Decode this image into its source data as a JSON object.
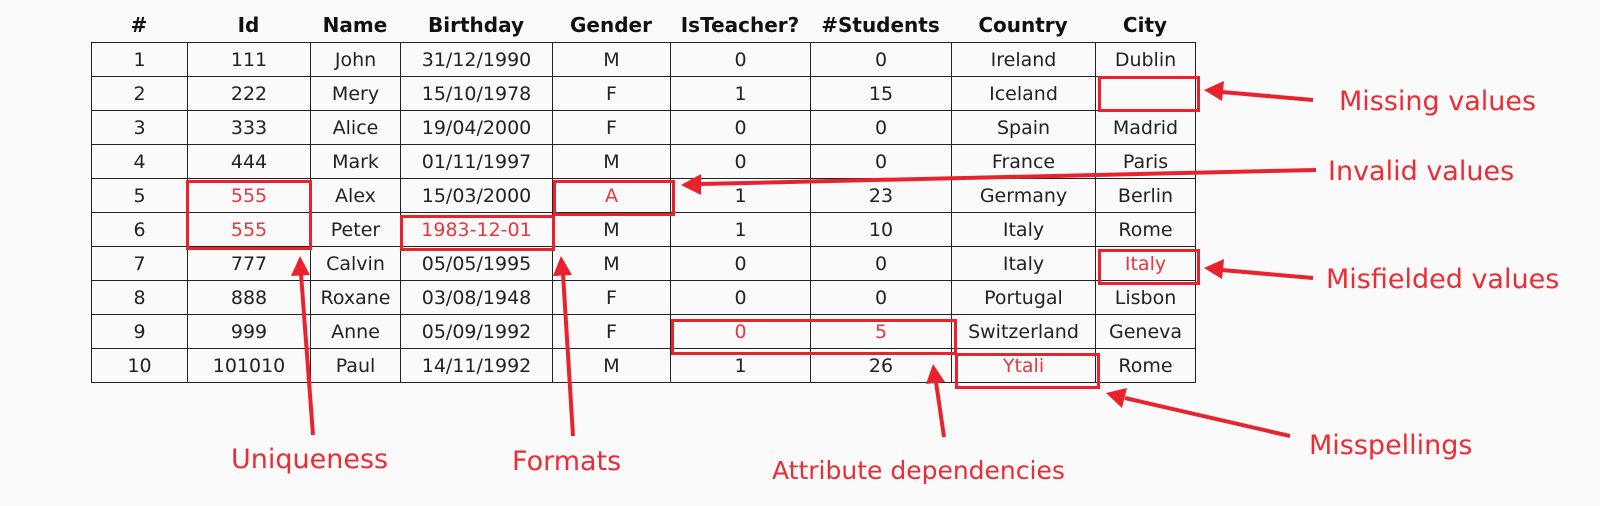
{
  "headers": [
    "#",
    "Id",
    "Name",
    "Birthday",
    "Gender",
    "IsTeacher?",
    "#Students",
    "Country",
    "City"
  ],
  "rows": [
    [
      "1",
      "111",
      "John",
      "31/12/1990",
      "M",
      "0",
      "0",
      "Ireland",
      "Dublin"
    ],
    [
      "2",
      "222",
      "Mery",
      "15/10/1978",
      "F",
      "1",
      "15",
      "Iceland",
      ""
    ],
    [
      "3",
      "333",
      "Alice",
      "19/04/2000",
      "F",
      "0",
      "0",
      "Spain",
      "Madrid"
    ],
    [
      "4",
      "444",
      "Mark",
      "01/11/1997",
      "M",
      "0",
      "0",
      "France",
      "Paris"
    ],
    [
      "5",
      "555",
      "Alex",
      "15/03/2000",
      "A",
      "1",
      "23",
      "Germany",
      "Berlin"
    ],
    [
      "6",
      "555",
      "Peter",
      "1983-12-01",
      "M",
      "1",
      "10",
      "Italy",
      "Rome"
    ],
    [
      "7",
      "777",
      "Calvin",
      "05/05/1995",
      "M",
      "0",
      "0",
      "Italy",
      "Italy"
    ],
    [
      "8",
      "888",
      "Roxane",
      "03/08/1948",
      "F",
      "0",
      "0",
      "Portugal",
      "Lisbon"
    ],
    [
      "9",
      "999",
      "Anne",
      "05/09/1992",
      "F",
      "0",
      "5",
      "Switzerland",
      "Geneva"
    ],
    [
      "10",
      "101010",
      "Paul",
      "14/11/1992",
      "M",
      "1",
      "26",
      "Ytali",
      "Rome"
    ]
  ],
  "error_cells": [
    [
      4,
      1
    ],
    [
      5,
      1
    ],
    [
      5,
      3
    ],
    [
      4,
      4
    ],
    [
      6,
      8
    ],
    [
      8,
      5
    ],
    [
      8,
      6
    ],
    [
      9,
      7
    ]
  ],
  "annotations": {
    "missing": "Missing values",
    "invalid": "Invalid values",
    "misfielded": "Misfielded values",
    "uniqueness": "Uniqueness",
    "formats": "Formats",
    "dependencies": "Attribute dependencies",
    "misspellings": "Misspellings"
  },
  "colors": {
    "highlight": "#e8232e",
    "error_text": "#e8373e"
  }
}
